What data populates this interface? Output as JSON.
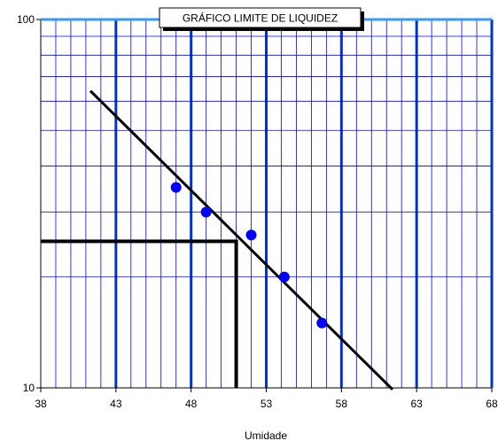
{
  "chart_data": {
    "type": "scatter",
    "title": "GRÁFICO LIMITE DE LIQUIDEZ",
    "xlabel": "Umidade",
    "ylabel": "",
    "xlim": [
      38,
      68
    ],
    "ylim": [
      10,
      100
    ],
    "y_scale": "log",
    "grid": true,
    "x_ticks": [
      38,
      43,
      48,
      53,
      58,
      63,
      68
    ],
    "y_ticks": [
      10,
      100
    ],
    "points": [
      {
        "x": 47.0,
        "y": 35
      },
      {
        "x": 49.0,
        "y": 30
      },
      {
        "x": 52.0,
        "y": 26
      },
      {
        "x": 54.2,
        "y": 20
      },
      {
        "x": 56.7,
        "y": 15
      }
    ],
    "trendline": [
      {
        "x": 41.3,
        "y": 64
      },
      {
        "x": 61.4,
        "y": 9.9
      }
    ],
    "reference": {
      "y": 25,
      "x": 51
    },
    "colors": {
      "grid_minor": "#0000ff",
      "grid_major": "#0033cc",
      "points": "#0000ff",
      "trendline": "#000000",
      "reference": "#000000",
      "top_border": "#3399ff"
    }
  }
}
